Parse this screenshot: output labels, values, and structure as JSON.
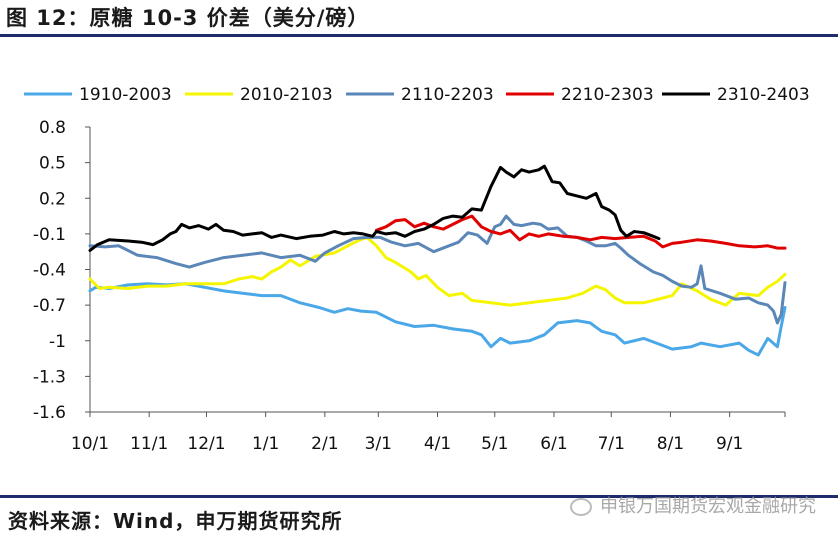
{
  "figure": {
    "title": "图 12：原糖 10-3 价差（美分/磅）",
    "source": "资料来源：Wind，申万期货研究所",
    "watermark": "申银万国期货宏观金融研究"
  },
  "chart_data": {
    "type": "line",
    "title": "",
    "xlabel": "",
    "ylabel": "",
    "ylim": [
      -1.6,
      0.8
    ],
    "y_ticks": [
      "0.8",
      "0.5",
      "0.2",
      "-0.1",
      "-0.4",
      "-0.7",
      "-1",
      "-1.3",
      "-1.6"
    ],
    "y_tick_values": [
      0.8,
      0.5,
      0.2,
      -0.1,
      -0.4,
      -0.7,
      -1.0,
      -1.3,
      -1.6
    ],
    "x_range_days": [
      0,
      364
    ],
    "x_ticks": [
      "10/1",
      "11/1",
      "12/1",
      "1/1",
      "2/1",
      "3/1",
      "4/1",
      "5/1",
      "6/1",
      "7/1",
      "8/1",
      "9/1"
    ],
    "x_tick_days": [
      0,
      31,
      61,
      92,
      123,
      151,
      182,
      212,
      243,
      273,
      304,
      335
    ],
    "legend_position": "top",
    "grid": false,
    "series": [
      {
        "name": "1910-2003",
        "color": "#4aa8e8",
        "points": [
          [
            0,
            -0.58
          ],
          [
            3,
            -0.55
          ],
          [
            10,
            -0.56
          ],
          [
            20,
            -0.53
          ],
          [
            30,
            -0.52
          ],
          [
            40,
            -0.53
          ],
          [
            50,
            -0.52
          ],
          [
            60,
            -0.55
          ],
          [
            70,
            -0.58
          ],
          [
            80,
            -0.6
          ],
          [
            90,
            -0.62
          ],
          [
            100,
            -0.62
          ],
          [
            110,
            -0.68
          ],
          [
            120,
            -0.72
          ],
          [
            128,
            -0.76
          ],
          [
            135,
            -0.73
          ],
          [
            142,
            -0.75
          ],
          [
            150,
            -0.76
          ],
          [
            160,
            -0.84
          ],
          [
            170,
            -0.88
          ],
          [
            180,
            -0.87
          ],
          [
            190,
            -0.9
          ],
          [
            200,
            -0.92
          ],
          [
            205,
            -0.95
          ],
          [
            210,
            -1.05
          ],
          [
            215,
            -0.98
          ],
          [
            220,
            -1.02
          ],
          [
            230,
            -1.0
          ],
          [
            238,
            -0.95
          ],
          [
            245,
            -0.85
          ],
          [
            255,
            -0.83
          ],
          [
            262,
            -0.85
          ],
          [
            268,
            -0.92
          ],
          [
            275,
            -0.95
          ],
          [
            280,
            -1.02
          ],
          [
            290,
            -0.98
          ],
          [
            300,
            -1.04
          ],
          [
            305,
            -1.07
          ],
          [
            315,
            -1.05
          ],
          [
            320,
            -1.02
          ],
          [
            330,
            -1.05
          ],
          [
            340,
            -1.02
          ],
          [
            345,
            -1.08
          ],
          [
            350,
            -1.12
          ],
          [
            355,
            -0.98
          ],
          [
            360,
            -1.05
          ],
          [
            362,
            -0.88
          ],
          [
            364,
            -0.72
          ]
        ]
      },
      {
        "name": "2010-2103",
        "color": "#f5f500",
        "points": [
          [
            0,
            -0.48
          ],
          [
            5,
            -0.56
          ],
          [
            10,
            -0.55
          ],
          [
            20,
            -0.56
          ],
          [
            30,
            -0.54
          ],
          [
            40,
            -0.54
          ],
          [
            50,
            -0.52
          ],
          [
            60,
            -0.52
          ],
          [
            70,
            -0.52
          ],
          [
            78,
            -0.48
          ],
          [
            85,
            -0.46
          ],
          [
            90,
            -0.48
          ],
          [
            95,
            -0.42
          ],
          [
            100,
            -0.38
          ],
          [
            105,
            -0.32
          ],
          [
            110,
            -0.37
          ],
          [
            118,
            -0.29
          ],
          [
            128,
            -0.26
          ],
          [
            135,
            -0.2
          ],
          [
            140,
            -0.16
          ],
          [
            145,
            -0.13
          ],
          [
            150,
            -0.2
          ],
          [
            155,
            -0.3
          ],
          [
            160,
            -0.34
          ],
          [
            168,
            -0.42
          ],
          [
            172,
            -0.48
          ],
          [
            176,
            -0.45
          ],
          [
            182,
            -0.55
          ],
          [
            188,
            -0.62
          ],
          [
            195,
            -0.6
          ],
          [
            200,
            -0.66
          ],
          [
            210,
            -0.68
          ],
          [
            220,
            -0.7
          ],
          [
            230,
            -0.68
          ],
          [
            240,
            -0.66
          ],
          [
            250,
            -0.64
          ],
          [
            258,
            -0.6
          ],
          [
            265,
            -0.54
          ],
          [
            270,
            -0.57
          ],
          [
            275,
            -0.64
          ],
          [
            280,
            -0.68
          ],
          [
            290,
            -0.68
          ],
          [
            295,
            -0.66
          ],
          [
            305,
            -0.62
          ],
          [
            310,
            -0.52
          ],
          [
            318,
            -0.58
          ],
          [
            325,
            -0.65
          ],
          [
            333,
            -0.7
          ],
          [
            340,
            -0.6
          ],
          [
            350,
            -0.62
          ],
          [
            355,
            -0.55
          ],
          [
            360,
            -0.5
          ],
          [
            364,
            -0.44
          ]
        ]
      },
      {
        "name": "2110-2203",
        "color": "#5b86b8",
        "points": [
          [
            0,
            -0.2
          ],
          [
            8,
            -0.21
          ],
          [
            15,
            -0.2
          ],
          [
            25,
            -0.28
          ],
          [
            35,
            -0.3
          ],
          [
            45,
            -0.35
          ],
          [
            52,
            -0.38
          ],
          [
            60,
            -0.34
          ],
          [
            70,
            -0.3
          ],
          [
            80,
            -0.28
          ],
          [
            90,
            -0.26
          ],
          [
            100,
            -0.3
          ],
          [
            110,
            -0.28
          ],
          [
            118,
            -0.33
          ],
          [
            123,
            -0.26
          ],
          [
            130,
            -0.2
          ],
          [
            138,
            -0.14
          ],
          [
            145,
            -0.13
          ],
          [
            152,
            -0.13
          ],
          [
            158,
            -0.17
          ],
          [
            165,
            -0.2
          ],
          [
            172,
            -0.18
          ],
          [
            180,
            -0.25
          ],
          [
            188,
            -0.2
          ],
          [
            193,
            -0.17
          ],
          [
            198,
            -0.09
          ],
          [
            203,
            -0.11
          ],
          [
            208,
            -0.18
          ],
          [
            212,
            -0.04
          ],
          [
            215,
            -0.02
          ],
          [
            218,
            0.05
          ],
          [
            222,
            -0.02
          ],
          [
            226,
            -0.03
          ],
          [
            232,
            -0.01
          ],
          [
            236,
            -0.02
          ],
          [
            240,
            -0.06
          ],
          [
            245,
            -0.05
          ],
          [
            250,
            -0.12
          ],
          [
            255,
            -0.13
          ],
          [
            260,
            -0.16
          ],
          [
            265,
            -0.2
          ],
          [
            270,
            -0.2
          ],
          [
            275,
            -0.18
          ],
          [
            278,
            -0.22
          ],
          [
            282,
            -0.28
          ],
          [
            288,
            -0.35
          ],
          [
            295,
            -0.42
          ],
          [
            300,
            -0.45
          ],
          [
            305,
            -0.5
          ],
          [
            310,
            -0.54
          ],
          [
            315,
            -0.55
          ],
          [
            318,
            -0.52
          ],
          [
            320,
            -0.37
          ],
          [
            322,
            -0.56
          ],
          [
            330,
            -0.6
          ],
          [
            338,
            -0.65
          ],
          [
            345,
            -0.64
          ],
          [
            350,
            -0.68
          ],
          [
            355,
            -0.7
          ],
          [
            358,
            -0.75
          ],
          [
            360,
            -0.85
          ],
          [
            362,
            -0.78
          ],
          [
            364,
            -0.51
          ]
        ]
      },
      {
        "name": "2210-2303",
        "color": "#e00000",
        "points": [
          [
            150,
            -0.07
          ],
          [
            155,
            -0.04
          ],
          [
            160,
            0.01
          ],
          [
            165,
            0.02
          ],
          [
            170,
            -0.04
          ],
          [
            175,
            -0.01
          ],
          [
            180,
            -0.04
          ],
          [
            185,
            -0.06
          ],
          [
            190,
            -0.02
          ],
          [
            195,
            0.02
          ],
          [
            200,
            0.05
          ],
          [
            205,
            -0.04
          ],
          [
            210,
            -0.08
          ],
          [
            215,
            -0.1
          ],
          [
            220,
            -0.07
          ],
          [
            225,
            -0.15
          ],
          [
            230,
            -0.1
          ],
          [
            235,
            -0.12
          ],
          [
            240,
            -0.1
          ],
          [
            248,
            -0.12
          ],
          [
            255,
            -0.13
          ],
          [
            262,
            -0.15
          ],
          [
            268,
            -0.13
          ],
          [
            275,
            -0.14
          ],
          [
            282,
            -0.13
          ],
          [
            290,
            -0.12
          ],
          [
            296,
            -0.16
          ],
          [
            300,
            -0.21
          ],
          [
            305,
            -0.18
          ],
          [
            310,
            -0.17
          ],
          [
            318,
            -0.15
          ],
          [
            325,
            -0.16
          ],
          [
            333,
            -0.18
          ],
          [
            340,
            -0.2
          ],
          [
            348,
            -0.21
          ],
          [
            355,
            -0.2
          ],
          [
            360,
            -0.22
          ],
          [
            364,
            -0.22
          ]
        ]
      },
      {
        "name": "2310-2403",
        "color": "#000000",
        "points": [
          [
            0,
            -0.24
          ],
          [
            4,
            -0.19
          ],
          [
            10,
            -0.15
          ],
          [
            20,
            -0.16
          ],
          [
            27,
            -0.17
          ],
          [
            33,
            -0.19
          ],
          [
            38,
            -0.15
          ],
          [
            42,
            -0.1
          ],
          [
            45,
            -0.08
          ],
          [
            48,
            -0.02
          ],
          [
            52,
            -0.05
          ],
          [
            57,
            -0.03
          ],
          [
            62,
            -0.06
          ],
          [
            66,
            -0.02
          ],
          [
            70,
            -0.07
          ],
          [
            75,
            -0.08
          ],
          [
            80,
            -0.11
          ],
          [
            85,
            -0.1
          ],
          [
            90,
            -0.09
          ],
          [
            95,
            -0.13
          ],
          [
            100,
            -0.11
          ],
          [
            108,
            -0.14
          ],
          [
            115,
            -0.12
          ],
          [
            122,
            -0.11
          ],
          [
            128,
            -0.08
          ],
          [
            133,
            -0.1
          ],
          [
            138,
            -0.09
          ],
          [
            143,
            -0.1
          ],
          [
            148,
            -0.12
          ],
          [
            150,
            -0.08
          ],
          [
            155,
            -0.1
          ],
          [
            160,
            -0.09
          ],
          [
            165,
            -0.12
          ],
          [
            170,
            -0.08
          ],
          [
            175,
            -0.06
          ],
          [
            180,
            -0.02
          ],
          [
            185,
            0.03
          ],
          [
            190,
            0.05
          ],
          [
            195,
            0.04
          ],
          [
            200,
            0.11
          ],
          [
            205,
            0.1
          ],
          [
            210,
            0.3
          ],
          [
            215,
            0.46
          ],
          [
            218,
            0.42
          ],
          [
            222,
            0.38
          ],
          [
            226,
            0.44
          ],
          [
            230,
            0.42
          ],
          [
            235,
            0.44
          ],
          [
            238,
            0.47
          ],
          [
            242,
            0.34
          ],
          [
            246,
            0.33
          ],
          [
            250,
            0.24
          ],
          [
            255,
            0.22
          ],
          [
            260,
            0.2
          ],
          [
            265,
            0.24
          ],
          [
            268,
            0.13
          ],
          [
            272,
            0.1
          ],
          [
            275,
            0.06
          ],
          [
            278,
            -0.07
          ],
          [
            281,
            -0.12
          ],
          [
            285,
            -0.08
          ],
          [
            290,
            -0.09
          ],
          [
            295,
            -0.12
          ],
          [
            298,
            -0.14
          ]
        ]
      }
    ]
  }
}
